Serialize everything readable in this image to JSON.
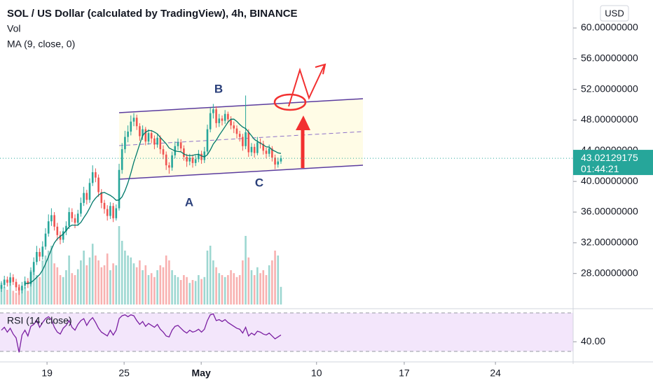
{
  "chart_data": {
    "type": "candlestick",
    "title": "SOL / US Dollar (calculated by TradingView), 4h, BINANCE",
    "indicators": [
      "Vol",
      "MA (9, close, 0)"
    ],
    "rsi_title": "RSI (14, close)",
    "currency": "USD",
    "countdown": "01:44:21",
    "annotations": [
      "A",
      "B",
      "C"
    ],
    "up_color": "#26a69a",
    "down_color": "#ef5350",
    "ma_color": "#00796b",
    "rsi_color": "#7b1fa2",
    "open": [
      26.0,
      26.5,
      27.2,
      26.8,
      27.5,
      26.9,
      26.2,
      25.8,
      26.4,
      27.0,
      26.6,
      28.2,
      29.5,
      30.8,
      30.2,
      31.5,
      33.2,
      34.8,
      35.6,
      34.1,
      33.0,
      32.4,
      33.5,
      34.2,
      36.0,
      35.2,
      34.6,
      35.8,
      37.2,
      38.5,
      37.6,
      39.8,
      41.2,
      40.5,
      38.6,
      37.2,
      36.4,
      35.5,
      36.8,
      35.2,
      36.5,
      41.5,
      44.2,
      45.8,
      46.5,
      47.8,
      48.3,
      47.2,
      45.9,
      46.8,
      45.2,
      46.3,
      45.6,
      44.8,
      45.7,
      44.2,
      43.5,
      42.1,
      41.8,
      43.4,
      44.6,
      45.1,
      44.3,
      43.2,
      42.6,
      43.1,
      42.4,
      42.9,
      43.6,
      42.8,
      43.9,
      46.8,
      48.9,
      49.4,
      47.6,
      48.2,
      47.9,
      48.8,
      48.1,
      47.3,
      46.9,
      46.2,
      45.8,
      44.6,
      46.4,
      43.8,
      44.5,
      43.7,
      45.1,
      44.9,
      44.0,
      43.6,
      44.3,
      43.1,
      42.2,
      42.6
    ],
    "high": [
      27.0,
      27.7,
      27.6,
      28.1,
      27.9,
      27.3,
      26.6,
      26.9,
      27.6,
      27.4,
      28.8,
      30.1,
      31.6,
      31.3,
      32.2,
      33.9,
      35.7,
      36.5,
      36.0,
      34.6,
      33.5,
      34.0,
      34.8,
      36.6,
      36.5,
      35.7,
      36.3,
      37.9,
      39.3,
      38.9,
      40.4,
      42.1,
      41.7,
      40.9,
      39.0,
      37.6,
      36.9,
      37.3,
      37.2,
      37.0,
      42.3,
      45.0,
      46.6,
      47.3,
      48.6,
      48.9,
      48.7,
      47.6,
      47.3,
      47.1,
      46.8,
      46.7,
      46.0,
      46.2,
      46.0,
      44.7,
      43.9,
      42.5,
      43.9,
      45.2,
      45.6,
      45.5,
      44.7,
      43.6,
      43.6,
      43.5,
      43.4,
      44.1,
      44.0,
      44.5,
      47.4,
      49.6,
      50.1,
      49.8,
      48.8,
      48.6,
      49.3,
      49.1,
      48.5,
      47.8,
      47.3,
      46.6,
      46.2,
      51.2,
      46.8,
      45.0,
      44.9,
      45.8,
      45.6,
      45.3,
      44.4,
      44.8,
      44.6,
      43.5,
      43.1,
      43.4
    ],
    "low": [
      25.6,
      26.1,
      26.3,
      26.4,
      26.5,
      25.7,
      25.2,
      25.4,
      26.0,
      26.1,
      26.3,
      27.8,
      29.1,
      29.6,
      29.8,
      31.1,
      32.8,
      34.2,
      33.6,
      32.3,
      31.8,
      32.0,
      33.0,
      33.8,
      34.7,
      33.9,
      34.2,
      35.4,
      36.8,
      37.0,
      37.2,
      39.4,
      39.9,
      38.0,
      36.5,
      35.8,
      34.9,
      35.1,
      34.7,
      34.9,
      36.2,
      41.0,
      43.7,
      45.1,
      46.0,
      47.2,
      46.7,
      45.3,
      45.4,
      44.7,
      44.8,
      45.0,
      44.2,
      44.4,
      43.6,
      42.9,
      41.5,
      41.0,
      41.4,
      43.0,
      44.1,
      43.8,
      42.7,
      41.9,
      42.1,
      41.8,
      42.0,
      42.5,
      42.3,
      42.4,
      43.5,
      46.4,
      48.2,
      47.0,
      47.1,
      47.3,
      47.5,
      47.6,
      46.8,
      46.3,
      45.6,
      45.2,
      44.0,
      44.2,
      43.2,
      43.3,
      43.1,
      43.4,
      44.3,
      43.5,
      43.0,
      43.2,
      42.6,
      41.6,
      41.8,
      42.3
    ],
    "close": [
      26.5,
      27.2,
      26.8,
      27.5,
      26.9,
      26.2,
      25.8,
      26.4,
      27.0,
      26.6,
      28.2,
      29.5,
      30.8,
      30.2,
      31.5,
      33.2,
      34.8,
      35.6,
      34.1,
      33.0,
      32.4,
      33.5,
      34.2,
      36.0,
      35.2,
      34.6,
      35.8,
      37.2,
      38.5,
      37.6,
      39.8,
      41.2,
      40.5,
      38.6,
      37.2,
      36.4,
      35.5,
      36.8,
      35.2,
      36.5,
      41.5,
      44.2,
      45.8,
      46.5,
      47.8,
      48.3,
      47.2,
      45.9,
      46.8,
      45.2,
      46.3,
      45.6,
      44.8,
      45.7,
      44.2,
      43.5,
      42.1,
      41.8,
      43.4,
      44.6,
      45.1,
      44.3,
      43.2,
      42.6,
      43.1,
      42.4,
      42.9,
      43.6,
      42.8,
      43.9,
      46.8,
      48.9,
      49.4,
      47.6,
      48.2,
      47.9,
      48.8,
      48.1,
      47.3,
      46.9,
      46.2,
      45.8,
      44.6,
      46.4,
      43.8,
      44.5,
      43.7,
      45.1,
      44.9,
      44.0,
      43.6,
      44.3,
      43.1,
      42.2,
      42.6,
      43.02129175
    ],
    "volume": [
      22,
      18,
      15,
      25,
      14,
      12,
      20,
      16,
      18,
      14,
      35,
      40,
      30,
      28,
      45,
      50,
      55,
      60,
      42,
      38,
      30,
      28,
      35,
      50,
      32,
      30,
      36,
      45,
      55,
      40,
      48,
      62,
      50,
      45,
      38,
      40,
      52,
      35,
      42,
      40,
      80,
      65,
      55,
      50,
      48,
      42,
      38,
      45,
      35,
      40,
      30,
      32,
      28,
      35,
      40,
      38,
      50,
      45,
      35,
      30,
      28,
      25,
      30,
      28,
      22,
      25,
      24,
      30,
      26,
      28,
      55,
      60,
      45,
      38,
      32,
      30,
      28,
      30,
      35,
      32,
      28,
      30,
      45,
      70,
      48,
      35,
      30,
      38,
      32,
      35,
      30,
      40,
      45,
      55,
      50,
      18
    ],
    "volume_lim": [
      0,
      100
    ],
    "ma": [
      null,
      null,
      null,
      null,
      null,
      null,
      null,
      null,
      26.7,
      26.71,
      26.82,
      27.12,
      27.49,
      27.86,
      28.44,
      29.27,
      30.2,
      31.16,
      31.99,
      32.52,
      32.84,
      33.14,
      33.59,
      34.09,
      34.31,
      34.29,
      34.31,
      34.66,
      35.27,
      35.84,
      36.54,
      37.32,
      37.82,
      38.2,
      38.49,
      38.56,
      38.37,
      38.18,
      37.91,
      37.54,
      37.58,
      37.99,
      38.79,
      39.82,
      41.09,
      42.51,
      43.67,
      44.86,
      46.0,
      46.41,
      46.64,
      46.62,
      46.43,
      46.2,
      45.74,
      45.33,
      44.91,
      44.36,
      44.16,
      43.97,
      43.91,
      43.86,
      43.58,
      43.4,
      43.36,
      43.39,
      43.51,
      43.53,
      43.33,
      43.2,
      43.48,
      44.11,
      44.87,
      45.37,
      46.01,
      46.57,
      47.14,
      47.73,
      48.11,
      48.12,
      47.82,
      47.42,
      47.09,
      46.89,
      46.43,
      45.96,
      45.47,
      45.22,
      45.0,
      44.76,
      44.51,
      44.48,
      44.11,
      43.93,
      43.72,
      43.65
    ],
    "rsi": [
      52,
      55,
      50,
      54,
      48,
      44,
      29,
      47,
      52,
      46,
      56,
      58,
      62,
      55,
      60,
      64,
      66,
      63,
      55,
      50,
      48,
      54,
      57,
      62,
      55,
      52,
      58,
      62,
      64,
      57,
      62,
      65,
      60,
      54,
      50,
      48,
      46,
      52,
      47,
      52,
      64,
      67,
      68,
      66,
      68,
      67,
      62,
      58,
      61,
      56,
      59,
      57,
      55,
      58,
      53,
      50,
      46,
      45,
      52,
      56,
      57,
      54,
      51,
      49,
      52,
      50,
      51,
      53,
      50,
      53,
      62,
      68,
      69,
      62,
      63,
      61,
      63,
      60,
      58,
      56,
      54,
      53,
      49,
      55,
      46,
      49,
      47,
      51,
      50,
      48,
      47,
      49,
      46,
      43,
      45,
      47
    ],
    "xlim": [
      -0.48,
      194.3
    ],
    "xticks": [
      {
        "value": 15.5,
        "label": "19"
      },
      {
        "value": 41.7,
        "label": "25"
      },
      {
        "value": 67.9,
        "label": "May"
      },
      {
        "value": 107.1,
        "label": "10"
      },
      {
        "value": 136.9,
        "label": "17"
      },
      {
        "value": 167.9,
        "label": "24"
      }
    ],
    "ylim": [
      23.5,
      63.65
    ],
    "yticks": [
      {
        "value": 60,
        "label": "60.00000000"
      },
      {
        "value": 56,
        "label": "56.00000000"
      },
      {
        "value": 52,
        "label": "52.00000000"
      },
      {
        "value": 48,
        "label": "48.00000000"
      },
      {
        "value": 44,
        "label": "44.00000000"
      },
      {
        "value": 40,
        "label": "40.00000000"
      },
      {
        "value": 36,
        "label": "36.00000000"
      },
      {
        "value": 32,
        "label": "32.00000000"
      },
      {
        "value": 28,
        "label": "28.00000000"
      }
    ],
    "rsi_ylim": [
      22.7,
      73.6
    ],
    "rsi_yticks": [
      {
        "value": 40,
        "label": "40.00"
      }
    ],
    "rsi_bands": [
      30,
      70
    ]
  }
}
